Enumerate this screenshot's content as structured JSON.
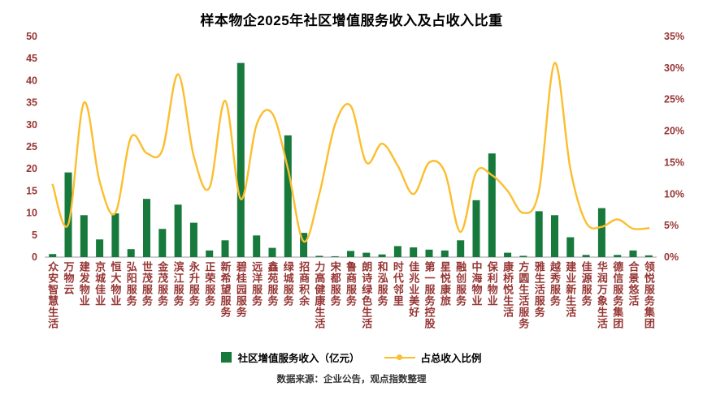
{
  "chart_data": {
    "type": "bar",
    "title": "样本物企2025年社区增值服务收入及占收入比重",
    "categories": [
      "众安智慧生活",
      "万物云",
      "建发物业",
      "京城佳业",
      "恒大物业",
      "弘阳服务",
      "世茂服务",
      "金茂服务",
      "滨江服务",
      "永升服务",
      "正荣服务",
      "新希望服务",
      "碧桂园服务",
      "远洋服务",
      "鑫苑服务",
      "绿城服务",
      "招商积余",
      "力高健康生活",
      "宋都服务",
      "鲁商服务",
      "朗诗绿色生活",
      "和泓服务",
      "时代邻里",
      "佳兆业美好",
      "第一服务控股",
      "星悦康旅",
      "融创服务",
      "中海物业",
      "保利物业",
      "康桥悦生活",
      "方圆生活服务",
      "雅生活服务",
      "越秀服务",
      "建业新生活",
      "佳源服务",
      "华润万象生活",
      "德信服务集团",
      "合景悠活",
      "领悦服务集团"
    ],
    "series": [
      {
        "name": "社区增值服务收入（亿元）",
        "type": "bar",
        "axis": "left",
        "values": [
          0.7,
          19.2,
          9.5,
          4.0,
          9.9,
          1.8,
          13.2,
          6.4,
          11.9,
          7.8,
          1.5,
          3.8,
          44.0,
          4.9,
          2.1,
          27.6,
          5.5,
          0.3,
          0.2,
          1.4,
          1.0,
          0.6,
          2.5,
          2.2,
          1.7,
          1.5,
          3.8,
          12.9,
          23.5,
          1.0,
          0.3,
          10.4,
          9.5,
          4.5,
          0.5,
          11.1,
          0.5,
          1.5,
          0.4
        ]
      },
      {
        "name": "占总收入比例",
        "type": "line",
        "axis": "right",
        "values": [
          11.5,
          5.2,
          24.5,
          12.0,
          7.0,
          19.0,
          16.5,
          17.0,
          29.0,
          16.0,
          11.0,
          24.8,
          9.2,
          21.0,
          22.8,
          14.0,
          2.5,
          10.0,
          21.0,
          24.0,
          15.0,
          18.0,
          14.5,
          10.0,
          15.0,
          13.5,
          4.0,
          13.5,
          13.0,
          10.5,
          7.0,
          10.5,
          30.8,
          14.0,
          5.5,
          4.8,
          6.0,
          4.5,
          4.6
        ]
      }
    ],
    "left_axis": {
      "min": 0,
      "max": 50,
      "step": 5,
      "suffix": ""
    },
    "right_axis": {
      "min": 0,
      "max": 35,
      "step": 5,
      "suffix": "%"
    },
    "legend_position": "bottom",
    "grid": false
  },
  "source_note": "数据来源：企业公告，观点指数整理",
  "colors": {
    "bar": "#17793C",
    "line": "#FBBE2E",
    "axis_label": "#963634",
    "title": "#000000",
    "baseline": "#9b9b9b",
    "source": "#333333"
  }
}
